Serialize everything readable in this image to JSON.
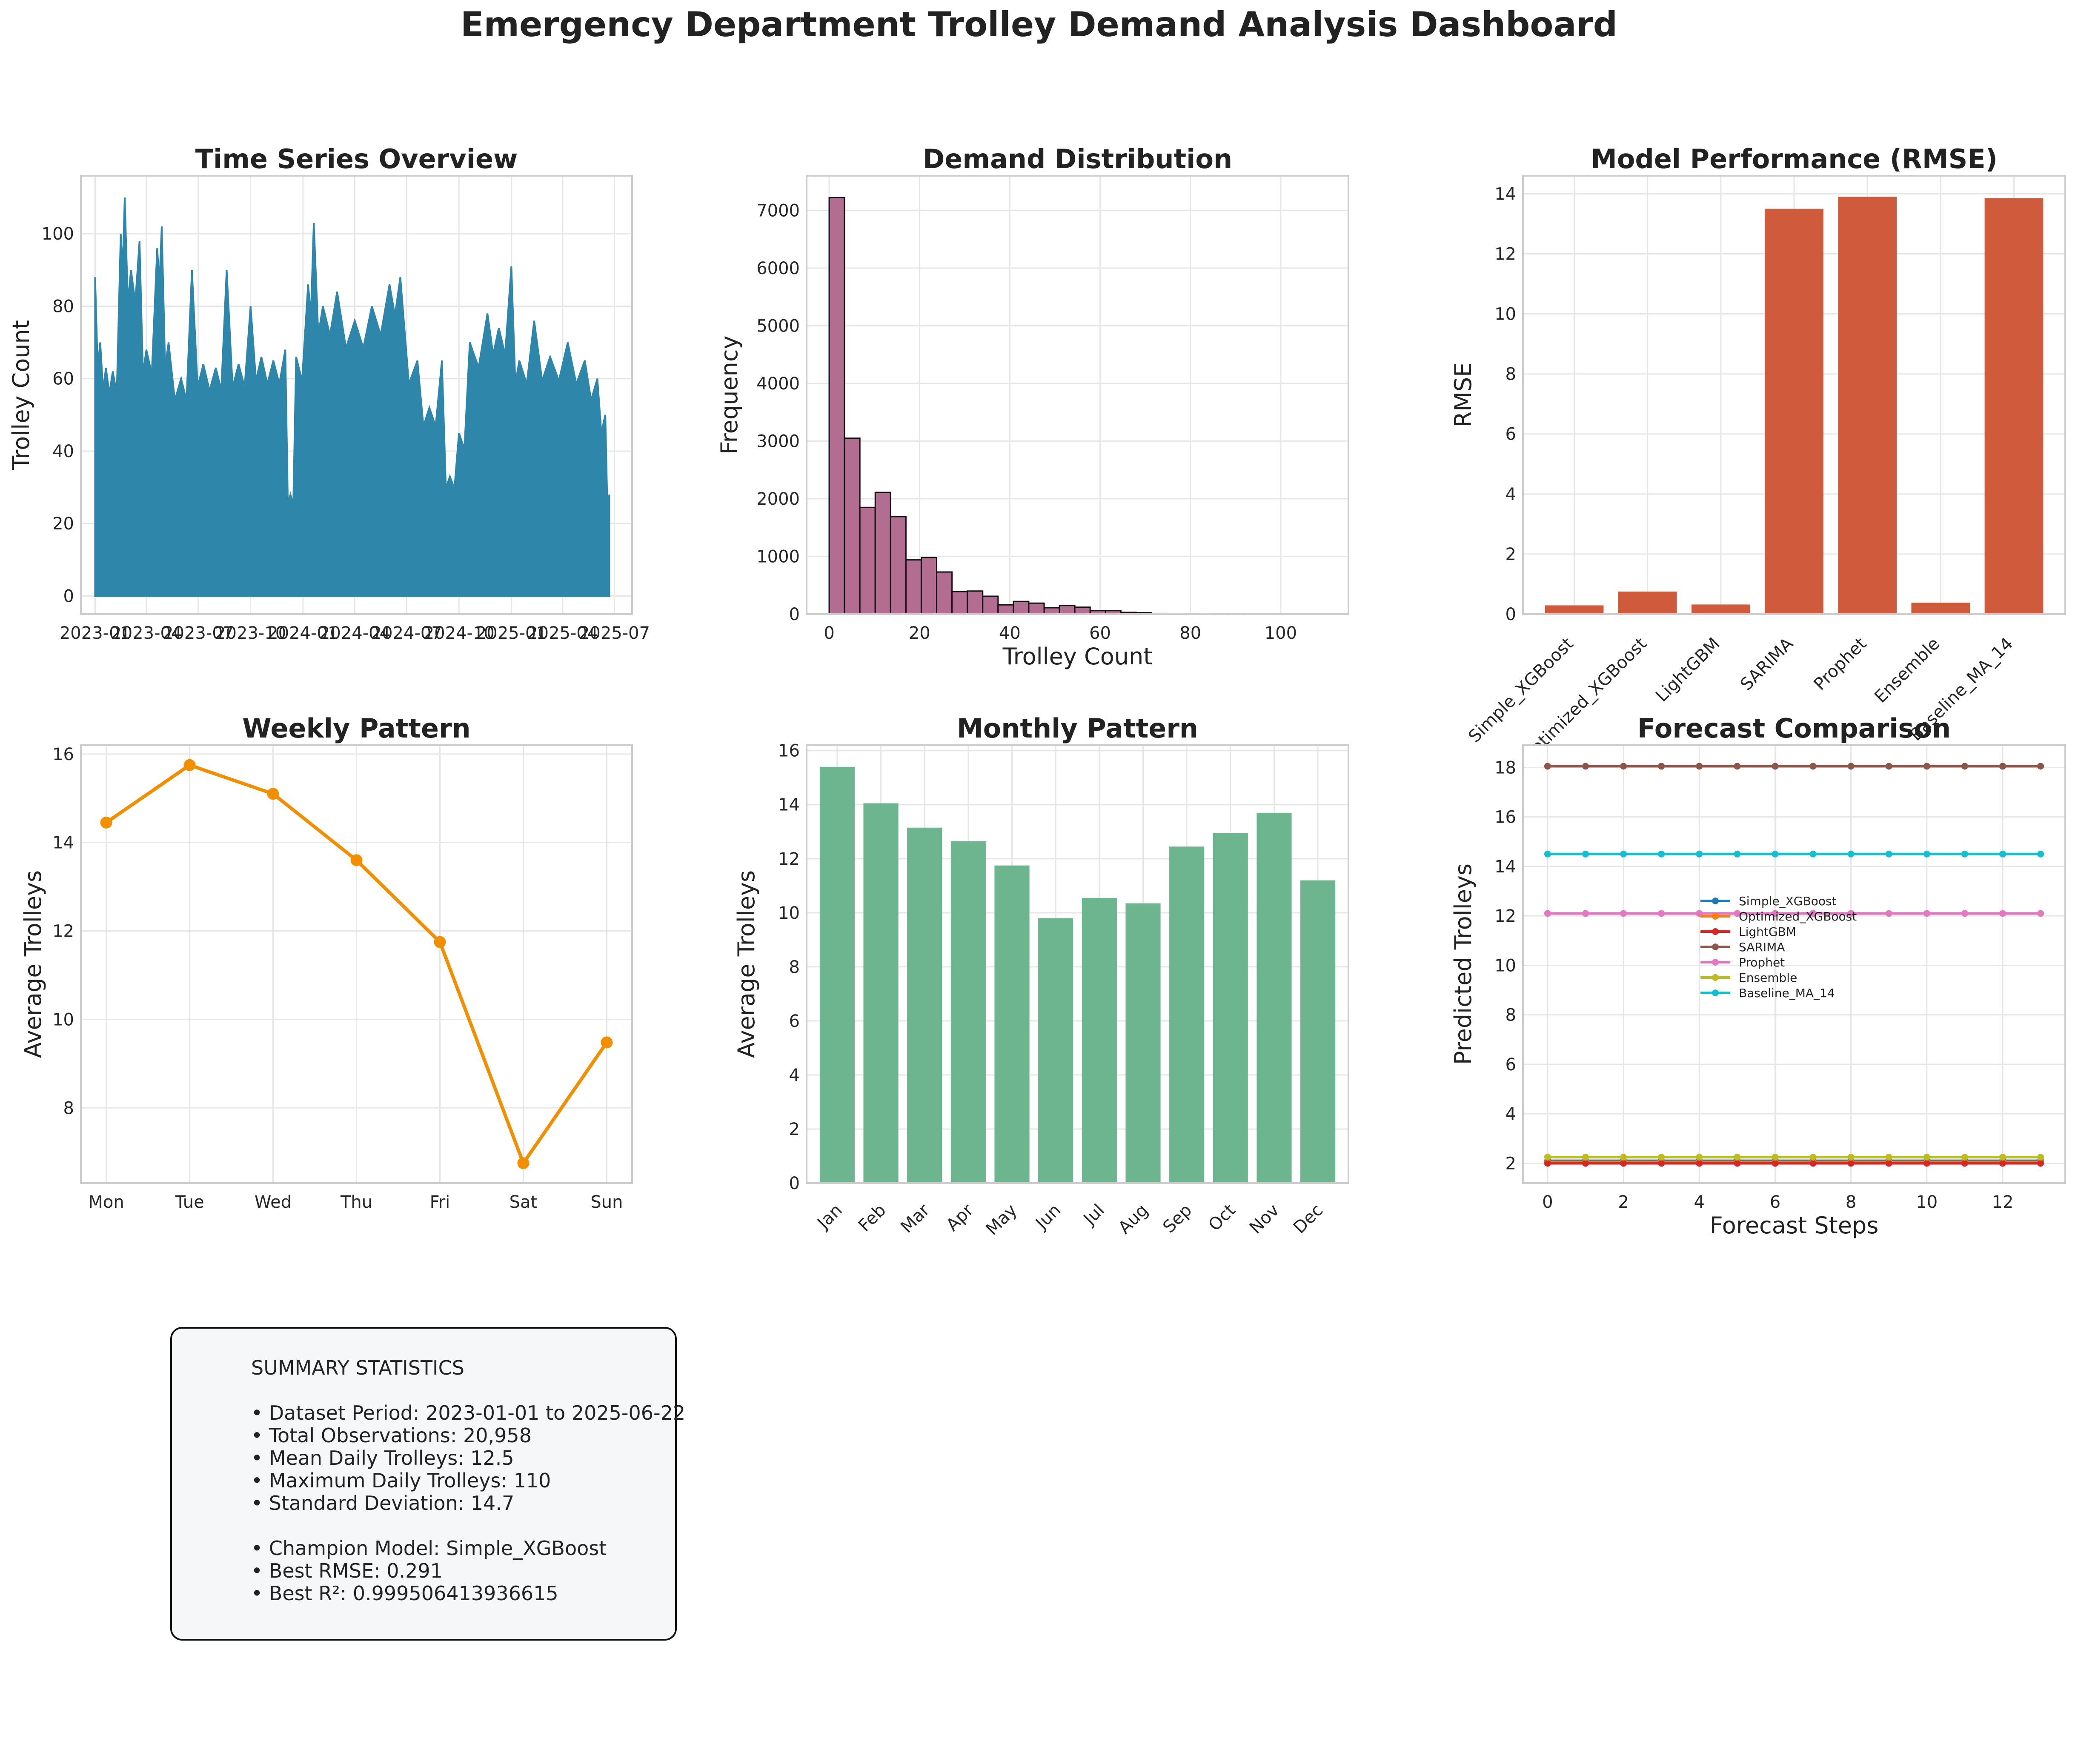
{
  "title": "Emergency Department Trolley Demand Analysis Dashboard",
  "colors": {
    "timeseries": "#2e86ab",
    "histogram": "#b16e90",
    "rmse_bar": "#cf5a3c",
    "weekly": "#f18f01",
    "monthly": "#6db58e"
  },
  "chart_data": [
    {
      "id": "timeseries",
      "type": "area",
      "title": "Time Series Overview",
      "xlabel": "",
      "ylabel": "Trolley Count",
      "x_ticks": [
        "2023-01",
        "2023-04",
        "2023-07",
        "2023-10",
        "2024-01",
        "2024-04",
        "2024-07",
        "2024-10",
        "2025-01",
        "2025-04",
        "2025-07"
      ],
      "ylim": [
        -5,
        116
      ],
      "y_ticks": [
        0,
        20,
        40,
        60,
        80,
        100
      ],
      "grid": true,
      "envelope": [
        {
          "x": "2023-01-01",
          "y": 88
        },
        {
          "x": "2023-01-10",
          "y": 70
        },
        {
          "x": "2023-01-20",
          "y": 63
        },
        {
          "x": "2023-02-01",
          "y": 62
        },
        {
          "x": "2023-02-15",
          "y": 100
        },
        {
          "x": "2023-02-22",
          "y": 110
        },
        {
          "x": "2023-03-05",
          "y": 90
        },
        {
          "x": "2023-03-20",
          "y": 98
        },
        {
          "x": "2023-04-01",
          "y": 68
        },
        {
          "x": "2023-04-20",
          "y": 96
        },
        {
          "x": "2023-04-28",
          "y": 102
        },
        {
          "x": "2023-05-10",
          "y": 70
        },
        {
          "x": "2023-06-01",
          "y": 60
        },
        {
          "x": "2023-06-20",
          "y": 90
        },
        {
          "x": "2023-07-10",
          "y": 64
        },
        {
          "x": "2023-08-01",
          "y": 63
        },
        {
          "x": "2023-08-20",
          "y": 90
        },
        {
          "x": "2023-09-10",
          "y": 64
        },
        {
          "x": "2023-10-01",
          "y": 80
        },
        {
          "x": "2023-10-20",
          "y": 66
        },
        {
          "x": "2023-11-10",
          "y": 65
        },
        {
          "x": "2023-12-01",
          "y": 68
        },
        {
          "x": "2023-12-10",
          "y": 28
        },
        {
          "x": "2023-12-20",
          "y": 66
        },
        {
          "x": "2024-01-10",
          "y": 86
        },
        {
          "x": "2024-01-20",
          "y": 103
        },
        {
          "x": "2024-02-05",
          "y": 80
        },
        {
          "x": "2024-03-01",
          "y": 84
        },
        {
          "x": "2024-04-01",
          "y": 76
        },
        {
          "x": "2024-05-01",
          "y": 80
        },
        {
          "x": "2024-06-01",
          "y": 86
        },
        {
          "x": "2024-06-20",
          "y": 88
        },
        {
          "x": "2024-07-20",
          "y": 65
        },
        {
          "x": "2024-08-10",
          "y": 52
        },
        {
          "x": "2024-09-01",
          "y": 65
        },
        {
          "x": "2024-09-15",
          "y": 33
        },
        {
          "x": "2024-10-01",
          "y": 45
        },
        {
          "x": "2024-10-20",
          "y": 70
        },
        {
          "x": "2024-11-20",
          "y": 78
        },
        {
          "x": "2024-12-10",
          "y": 74
        },
        {
          "x": "2025-01-01",
          "y": 91
        },
        {
          "x": "2025-01-15",
          "y": 65
        },
        {
          "x": "2025-02-10",
          "y": 76
        },
        {
          "x": "2025-03-10",
          "y": 66
        },
        {
          "x": "2025-04-10",
          "y": 70
        },
        {
          "x": "2025-05-10",
          "y": 65
        },
        {
          "x": "2025-06-01",
          "y": 60
        },
        {
          "x": "2025-06-15",
          "y": 50
        },
        {
          "x": "2025-06-22",
          "y": 28
        }
      ]
    },
    {
      "id": "histogram",
      "type": "bar",
      "title": "Demand Distribution",
      "xlabel": "Trolley Count",
      "ylabel": "Frequency",
      "bin_width": 3.4,
      "bin_start": 0,
      "values": [
        7220,
        3050,
        1850,
        2110,
        1690,
        940,
        980,
        730,
        390,
        400,
        310,
        160,
        220,
        190,
        110,
        150,
        120,
        60,
        60,
        30,
        25,
        12,
        10,
        6,
        8,
        4,
        5,
        3,
        2,
        2,
        1,
        1
      ],
      "xlim": [
        -5,
        115
      ],
      "ylim": [
        0,
        7600
      ],
      "x_ticks": [
        0,
        20,
        40,
        60,
        80,
        100
      ],
      "y_ticks": [
        0,
        1000,
        2000,
        3000,
        4000,
        5000,
        6000,
        7000
      ],
      "grid": true
    },
    {
      "id": "rmse",
      "type": "bar",
      "title": "Model Performance (RMSE)",
      "xlabel": "",
      "ylabel": "RMSE",
      "categories": [
        "Simple_XGBoost",
        "Optimized_XGBoost",
        "LightGBM",
        "SARIMA",
        "Prophet",
        "Ensemble",
        "Baseline_MA_14"
      ],
      "values": [
        0.291,
        0.75,
        0.32,
        13.5,
        13.9,
        0.38,
        13.85
      ],
      "ylim": [
        0,
        14.6
      ],
      "y_ticks": [
        0,
        2,
        4,
        6,
        8,
        10,
        12,
        14
      ],
      "grid": true
    },
    {
      "id": "weekly",
      "type": "line",
      "title": "Weekly Pattern",
      "xlabel": "",
      "ylabel": "Average Trolleys",
      "categories": [
        "Mon",
        "Tue",
        "Wed",
        "Thu",
        "Fri",
        "Sat",
        "Sun"
      ],
      "values": [
        14.45,
        15.75,
        15.1,
        13.6,
        11.75,
        6.75,
        9.48
      ],
      "ylim": [
        6.3,
        16.2
      ],
      "y_ticks": [
        8,
        10,
        12,
        14,
        16
      ],
      "grid": true
    },
    {
      "id": "monthly",
      "type": "bar",
      "title": "Monthly Pattern",
      "xlabel": "",
      "ylabel": "Average Trolleys",
      "categories": [
        "Jan",
        "Feb",
        "Mar",
        "Apr",
        "May",
        "Jun",
        "Jul",
        "Aug",
        "Sep",
        "Oct",
        "Nov",
        "Dec"
      ],
      "values": [
        15.4,
        14.05,
        13.15,
        12.65,
        11.75,
        9.8,
        10.55,
        10.35,
        12.45,
        12.95,
        13.7,
        11.2
      ],
      "ylim": [
        0,
        16.2
      ],
      "y_ticks": [
        0,
        2,
        4,
        6,
        8,
        10,
        12,
        14,
        16
      ],
      "grid": true
    },
    {
      "id": "forecast",
      "type": "line",
      "title": "Forecast Comparison",
      "xlabel": "Forecast Steps",
      "ylabel": "Predicted Trolleys",
      "x": [
        0,
        1,
        2,
        3,
        4,
        5,
        6,
        7,
        8,
        9,
        10,
        11,
        12,
        13
      ],
      "xlim": [
        -0.65,
        13.65
      ],
      "ylim": [
        1.2,
        18.9
      ],
      "x_ticks": [
        0,
        2,
        4,
        6,
        8,
        10,
        12
      ],
      "y_ticks": [
        2,
        4,
        6,
        8,
        10,
        12,
        14,
        16,
        18
      ],
      "legend": "center-right",
      "grid": true,
      "series": [
        {
          "name": "Simple_XGBoost",
          "value": 2.1,
          "color": "#1f77b4"
        },
        {
          "name": "Optimized_XGBoost",
          "value": 2.05,
          "color": "#ff7f0e"
        },
        {
          "name": "LightGBM",
          "value": 2.0,
          "color": "#d62728"
        },
        {
          "name": "SARIMA",
          "value": 18.05,
          "color": "#8c564b"
        },
        {
          "name": "Prophet",
          "value": 12.1,
          "color": "#e377c2"
        },
        {
          "name": "Ensemble",
          "value": 2.25,
          "color": "#bcbd22"
        },
        {
          "name": "Baseline_MA_14",
          "value": 14.5,
          "color": "#17becf"
        }
      ]
    }
  ],
  "summary": {
    "lines": [
      "SUMMARY STATISTICS",
      "",
      "• Dataset Period: 2023-01-01 to 2025-06-22",
      "• Total Observations: 20,958",
      "• Mean Daily Trolleys: 12.5",
      "• Maximum Daily Trolleys: 110",
      "• Standard Deviation: 14.7",
      "",
      "• Champion Model: Simple_XGBoost",
      "• Best RMSE: 0.291",
      "• Best R²: 0.999506413936615"
    ]
  }
}
